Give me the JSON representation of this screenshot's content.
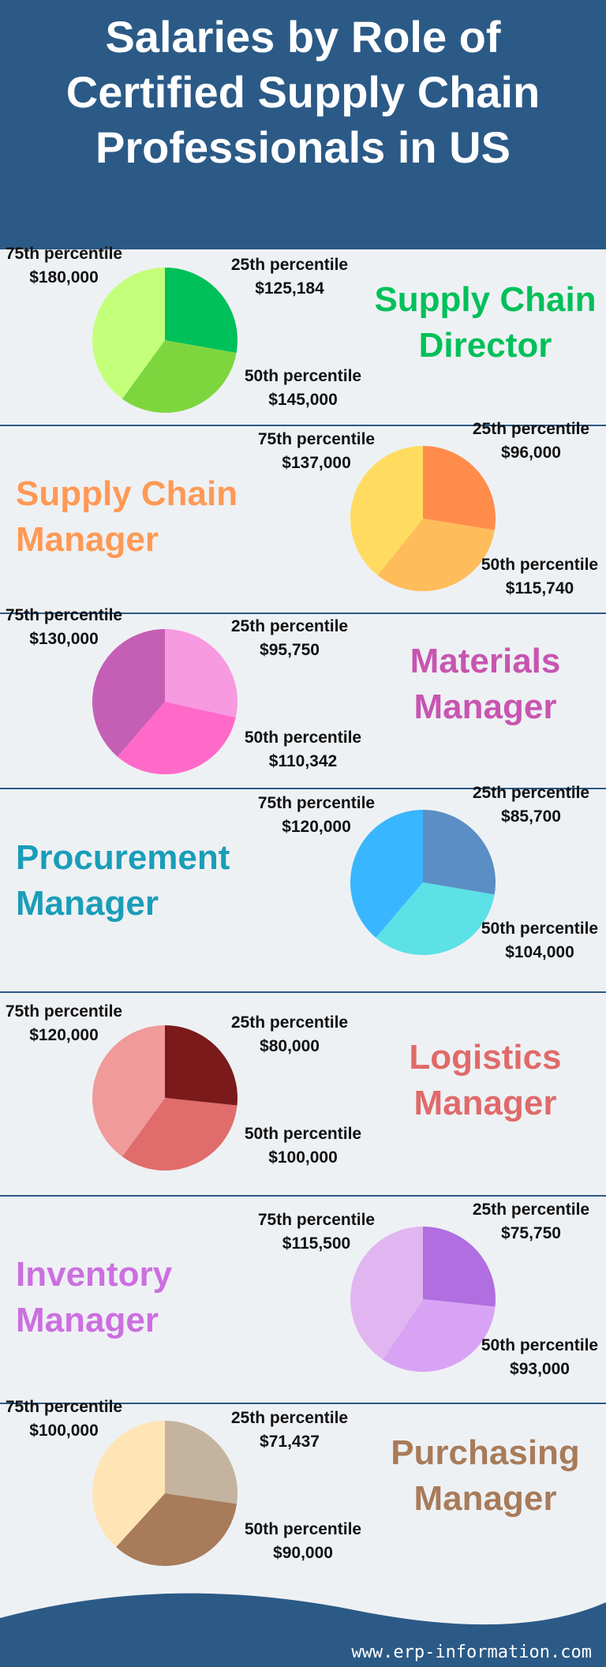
{
  "header": {
    "title": "Salaries by Role of Certified Supply Chain Professionals in US"
  },
  "footer": {
    "text": "www.erp-information.com"
  },
  "chart_data": [
    {
      "type": "pie",
      "title": "Supply Chain Director",
      "title_color": "#00c05a",
      "categories": [
        "25th percentile",
        "50th percentile",
        "75th percentile"
      ],
      "values": [
        125184,
        145000,
        180000
      ],
      "value_labels": [
        "$125,184",
        "$145,000",
        "$180,000"
      ],
      "colors": [
        "#00c05a",
        "#7ed63f",
        "#c4ff7a"
      ]
    },
    {
      "type": "pie",
      "title": "Supply Chain Manager",
      "title_color": "#ff9955",
      "categories": [
        "25th percentile",
        "50th percentile",
        "75th percentile"
      ],
      "values": [
        96000,
        115740,
        137000
      ],
      "value_labels": [
        "$96,000",
        "$115,740",
        "$137,000"
      ],
      "colors": [
        "#ff8c4a",
        "#ffbc5a",
        "#ffdc60"
      ]
    },
    {
      "type": "pie",
      "title": "Materials Manager",
      "title_color": "#c855b1",
      "categories": [
        "25th percentile",
        "50th percentile",
        "75th percentile"
      ],
      "values": [
        95750,
        110342,
        130000
      ],
      "value_labels": [
        "$95,750",
        "$110,342",
        "$130,000"
      ],
      "colors": [
        "#f79ae0",
        "#ff6ac9",
        "#c55fb5"
      ]
    },
    {
      "type": "pie",
      "title": "Procurement Manager",
      "title_color": "#1a9db8",
      "categories": [
        "25th percentile",
        "50th percentile",
        "75th percentile"
      ],
      "values": [
        85700,
        104000,
        120000
      ],
      "value_labels": [
        "$85,700",
        "$104,000",
        "$120,000"
      ],
      "colors": [
        "#5b8ec4",
        "#5ce1e6",
        "#38b6ff"
      ]
    },
    {
      "type": "pie",
      "title": "Logistics Manager",
      "title_color": "#e06a6a",
      "categories": [
        "25th percentile",
        "50th percentile",
        "75th percentile"
      ],
      "values": [
        80000,
        100000,
        120000
      ],
      "value_labels": [
        "$80,000",
        "$100,000",
        "$120,000"
      ],
      "colors": [
        "#7b1a1a",
        "#e06c6c",
        "#f09a9a"
      ]
    },
    {
      "type": "pie",
      "title": "Inventory Manager",
      "title_color": "#cc6fe0",
      "categories": [
        "25th percentile",
        "50th percentile",
        "75th percentile"
      ],
      "values": [
        75750,
        93000,
        115500
      ],
      "value_labels": [
        "$75,750",
        "$93,000",
        "$115,500"
      ],
      "colors": [
        "#b06ee0",
        "#d9a3f5",
        "#e1b6f0"
      ]
    },
    {
      "type": "pie",
      "title": "Purchasing Manager",
      "title_color": "#a87b5a",
      "categories": [
        "25th percentile",
        "50th percentile",
        "75th percentile"
      ],
      "values": [
        71437,
        90000,
        100000
      ],
      "value_labels": [
        "$71,437",
        "$90,000",
        "$100,000"
      ],
      "colors": [
        "#c4b49f",
        "#a87b5a",
        "#ffe4b5"
      ]
    }
  ]
}
